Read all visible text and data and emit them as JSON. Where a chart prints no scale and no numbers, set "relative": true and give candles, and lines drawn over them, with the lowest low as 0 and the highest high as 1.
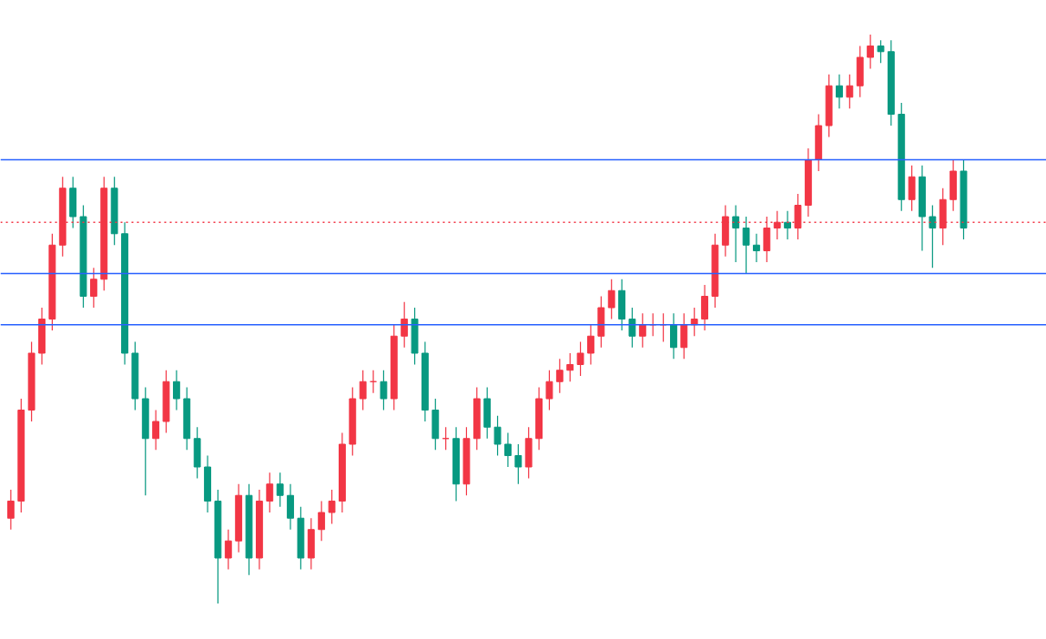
{
  "chart_data": {
    "type": "candlestick",
    "relative": true,
    "grid": false,
    "tick_labels": false,
    "categories": [
      null,
      null,
      null,
      null,
      null,
      null,
      null,
      null,
      null,
      null,
      null,
      null,
      null,
      null,
      null,
      null,
      null,
      null,
      null,
      null,
      null,
      null,
      null,
      null,
      null,
      null,
      null,
      null,
      null,
      null,
      null,
      null,
      null,
      null,
      null,
      null,
      null,
      null,
      null,
      null,
      null,
      null,
      null,
      null,
      null,
      null,
      null,
      null,
      null,
      null,
      null,
      null,
      null,
      null,
      null,
      null,
      null,
      null,
      null,
      null,
      null,
      null,
      null,
      null,
      null,
      null,
      null,
      null,
      null,
      null,
      null,
      null,
      null,
      null,
      null,
      null,
      null,
      null,
      null,
      null,
      null,
      null,
      null,
      null,
      null,
      null,
      null,
      null,
      null,
      null,
      null,
      null,
      null
    ],
    "ohlc": [
      [
        0.15,
        0.2,
        0.13,
        0.18
      ],
      [
        0.18,
        0.36,
        0.16,
        0.34
      ],
      [
        0.34,
        0.46,
        0.32,
        0.44
      ],
      [
        0.44,
        0.52,
        0.42,
        0.5
      ],
      [
        0.5,
        0.65,
        0.48,
        0.63
      ],
      [
        0.63,
        0.75,
        0.61,
        0.73
      ],
      [
        0.73,
        0.75,
        0.66,
        0.68
      ],
      [
        0.68,
        0.7,
        0.52,
        0.54
      ],
      [
        0.54,
        0.59,
        0.52,
        0.57
      ],
      [
        0.57,
        0.75,
        0.55,
        0.73
      ],
      [
        0.73,
        0.75,
        0.63,
        0.65
      ],
      [
        0.65,
        0.67,
        0.42,
        0.44
      ],
      [
        0.44,
        0.46,
        0.34,
        0.36
      ],
      [
        0.36,
        0.38,
        0.19,
        0.29
      ],
      [
        0.29,
        0.34,
        0.27,
        0.32
      ],
      [
        0.32,
        0.41,
        0.3,
        0.39
      ],
      [
        0.39,
        0.41,
        0.34,
        0.36
      ],
      [
        0.36,
        0.38,
        0.27,
        0.29
      ],
      [
        0.29,
        0.31,
        0.22,
        0.24
      ],
      [
        0.24,
        0.26,
        0.16,
        0.18
      ],
      [
        0.18,
        0.2,
        0.0,
        0.08
      ],
      [
        0.08,
        0.13,
        0.06,
        0.11
      ],
      [
        0.11,
        0.21,
        0.09,
        0.19
      ],
      [
        0.19,
        0.21,
        0.05,
        0.08
      ],
      [
        0.08,
        0.2,
        0.06,
        0.18
      ],
      [
        0.18,
        0.23,
        0.16,
        0.21
      ],
      [
        0.21,
        0.23,
        0.17,
        0.19
      ],
      [
        0.19,
        0.21,
        0.13,
        0.15
      ],
      [
        0.15,
        0.17,
        0.06,
        0.08
      ],
      [
        0.08,
        0.15,
        0.06,
        0.13
      ],
      [
        0.13,
        0.18,
        0.11,
        0.16
      ],
      [
        0.16,
        0.2,
        0.14,
        0.18
      ],
      [
        0.18,
        0.3,
        0.16,
        0.28
      ],
      [
        0.28,
        0.38,
        0.26,
        0.36
      ],
      [
        0.36,
        0.41,
        0.34,
        0.39
      ],
      [
        0.39,
        0.41,
        0.37,
        0.39
      ],
      [
        0.39,
        0.41,
        0.34,
        0.36
      ],
      [
        0.36,
        0.49,
        0.34,
        0.47
      ],
      [
        0.47,
        0.53,
        0.45,
        0.5
      ],
      [
        0.5,
        0.52,
        0.42,
        0.44
      ],
      [
        0.44,
        0.46,
        0.32,
        0.34
      ],
      [
        0.34,
        0.36,
        0.27,
        0.29
      ],
      [
        0.29,
        0.31,
        0.27,
        0.29
      ],
      [
        0.29,
        0.31,
        0.18,
        0.21
      ],
      [
        0.21,
        0.31,
        0.19,
        0.29
      ],
      [
        0.29,
        0.38,
        0.27,
        0.36
      ],
      [
        0.36,
        0.38,
        0.29,
        0.31
      ],
      [
        0.31,
        0.33,
        0.26,
        0.28
      ],
      [
        0.28,
        0.3,
        0.24,
        0.26
      ],
      [
        0.26,
        0.28,
        0.21,
        0.24
      ],
      [
        0.24,
        0.31,
        0.22,
        0.29
      ],
      [
        0.29,
        0.38,
        0.27,
        0.36
      ],
      [
        0.36,
        0.41,
        0.34,
        0.39
      ],
      [
        0.39,
        0.43,
        0.37,
        0.41
      ],
      [
        0.41,
        0.44,
        0.39,
        0.42
      ],
      [
        0.42,
        0.46,
        0.4,
        0.44
      ],
      [
        0.44,
        0.49,
        0.42,
        0.47
      ],
      [
        0.47,
        0.54,
        0.45,
        0.52
      ],
      [
        0.52,
        0.57,
        0.5,
        0.55
      ],
      [
        0.55,
        0.57,
        0.48,
        0.5
      ],
      [
        0.5,
        0.52,
        0.45,
        0.47
      ],
      [
        0.47,
        0.51,
        0.45,
        0.49
      ],
      [
        0.49,
        0.51,
        0.47,
        0.49
      ],
      [
        0.49,
        0.51,
        0.46,
        0.49
      ],
      [
        0.49,
        0.51,
        0.43,
        0.45
      ],
      [
        0.45,
        0.51,
        0.43,
        0.49
      ],
      [
        0.49,
        0.52,
        0.47,
        0.5
      ],
      [
        0.5,
        0.56,
        0.48,
        0.54
      ],
      [
        0.54,
        0.65,
        0.52,
        0.63
      ],
      [
        0.63,
        0.7,
        0.61,
        0.68
      ],
      [
        0.68,
        0.7,
        0.6,
        0.66
      ],
      [
        0.66,
        0.68,
        0.58,
        0.63
      ],
      [
        0.63,
        0.65,
        0.6,
        0.62
      ],
      [
        0.62,
        0.68,
        0.6,
        0.66
      ],
      [
        0.66,
        0.69,
        0.64,
        0.67
      ],
      [
        0.67,
        0.69,
        0.64,
        0.66
      ],
      [
        0.66,
        0.72,
        0.64,
        0.7
      ],
      [
        0.7,
        0.8,
        0.68,
        0.78
      ],
      [
        0.78,
        0.86,
        0.76,
        0.84
      ],
      [
        0.84,
        0.93,
        0.82,
        0.91
      ],
      [
        0.91,
        0.93,
        0.87,
        0.89
      ],
      [
        0.89,
        0.93,
        0.87,
        0.91
      ],
      [
        0.91,
        0.98,
        0.89,
        0.96
      ],
      [
        0.96,
        1.0,
        0.94,
        0.98
      ],
      [
        0.98,
        0.99,
        0.95,
        0.97
      ],
      [
        0.97,
        0.99,
        0.84,
        0.86
      ],
      [
        0.86,
        0.88,
        0.69,
        0.71
      ],
      [
        0.71,
        0.77,
        0.69,
        0.75
      ],
      [
        0.75,
        0.77,
        0.62,
        0.68
      ],
      [
        0.68,
        0.7,
        0.59,
        0.66
      ],
      [
        0.66,
        0.73,
        0.63,
        0.71
      ],
      [
        0.71,
        0.78,
        0.69,
        0.76
      ],
      [
        0.76,
        0.78,
        0.64,
        0.66
      ]
    ],
    "colors": [
      "#f23645",
      "#f23645",
      "#f23645",
      "#f23645",
      "#f23645",
      "#f23645",
      "#089981",
      "#089981",
      "#f23645",
      "#f23645",
      "#089981",
      "#089981",
      "#089981",
      "#089981",
      "#f23645",
      "#f23645",
      "#089981",
      "#089981",
      "#089981",
      "#089981",
      "#089981",
      "#f23645",
      "#f23645",
      "#089981",
      "#f23645",
      "#f23645",
      "#089981",
      "#089981",
      "#089981",
      "#f23645",
      "#f23645",
      "#f23645",
      "#f23645",
      "#f23645",
      "#f23645",
      "#f23645",
      "#089981",
      "#f23645",
      "#f23645",
      "#089981",
      "#089981",
      "#089981",
      "#f23645",
      "#089981",
      "#f23645",
      "#f23645",
      "#089981",
      "#089981",
      "#089981",
      "#089981",
      "#f23645",
      "#f23645",
      "#f23645",
      "#f23645",
      "#f23645",
      "#f23645",
      "#f23645",
      "#f23645",
      "#f23645",
      "#089981",
      "#089981",
      "#f23645",
      "#f23645",
      "#f23645",
      "#089981",
      "#f23645",
      "#f23645",
      "#f23645",
      "#f23645",
      "#f23645",
      "#089981",
      "#089981",
      "#089981",
      "#f23645",
      "#f23645",
      "#089981",
      "#f23645",
      "#f23645",
      "#f23645",
      "#f23645",
      "#089981",
      "#f23645",
      "#f23645",
      "#f23645",
      "#089981",
      "#089981",
      "#089981",
      "#f23645",
      "#089981",
      "#089981",
      "#f23645",
      "#f23645",
      "#089981"
    ],
    "ref_lines": [
      {
        "axis": "y",
        "value": 0.78,
        "color": "#2962ff",
        "line_style": "solid"
      },
      {
        "axis": "y",
        "value": 0.58,
        "color": "#2962ff",
        "line_style": "solid"
      },
      {
        "axis": "y",
        "value": 0.49,
        "color": "#2962ff",
        "line_style": "solid"
      },
      {
        "axis": "y",
        "value": 0.67,
        "color": "#f23645",
        "line_style": "dotted"
      }
    ]
  }
}
